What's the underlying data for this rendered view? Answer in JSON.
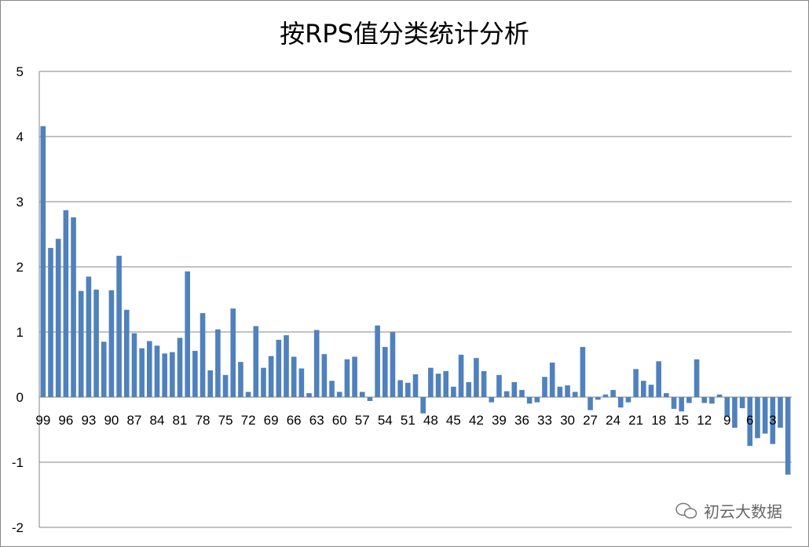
{
  "chart_data": {
    "type": "bar",
    "title": "按RPS值分类统计分析",
    "xlabel": "",
    "ylabel": "",
    "ylim": [
      -2,
      5
    ],
    "yticks": [
      -2,
      -1,
      0,
      1,
      2,
      3,
      4,
      5
    ],
    "grid": true,
    "legend": "none",
    "bar_color": "#4F81BD",
    "categories": [
      99,
      98,
      97,
      96,
      95,
      94,
      93,
      92,
      91,
      90,
      89,
      88,
      87,
      86,
      85,
      84,
      83,
      82,
      81,
      80,
      79,
      78,
      77,
      76,
      75,
      74,
      73,
      72,
      71,
      70,
      69,
      68,
      67,
      66,
      65,
      64,
      63,
      62,
      61,
      60,
      59,
      58,
      57,
      56,
      55,
      54,
      53,
      52,
      51,
      50,
      49,
      48,
      47,
      46,
      45,
      44,
      43,
      42,
      41,
      40,
      39,
      38,
      37,
      36,
      35,
      34,
      33,
      32,
      31,
      30,
      29,
      28,
      27,
      26,
      25,
      24,
      23,
      22,
      21,
      20,
      19,
      18,
      17,
      16,
      15,
      14,
      13,
      12,
      11,
      10,
      9,
      8,
      7,
      6,
      5,
      4,
      3,
      2,
      1
    ],
    "values": [
      4.16,
      2.29,
      2.43,
      2.87,
      2.76,
      1.63,
      1.85,
      1.65,
      0.85,
      1.64,
      2.17,
      1.34,
      0.98,
      0.75,
      0.86,
      0.79,
      0.67,
      0.69,
      0.91,
      1.93,
      0.71,
      1.29,
      0.41,
      1.04,
      0.34,
      1.36,
      0.54,
      0.08,
      1.09,
      0.45,
      0.63,
      0.88,
      0.95,
      0.62,
      0.44,
      0.06,
      1.03,
      0.66,
      0.25,
      0.08,
      0.58,
      0.62,
      0.08,
      -0.06,
      1.1,
      0.77,
      1.0,
      0.26,
      0.22,
      0.35,
      -0.25,
      0.45,
      0.36,
      0.4,
      0.16,
      0.65,
      0.23,
      0.6,
      0.4,
      -0.08,
      0.34,
      0.09,
      0.23,
      0.11,
      -0.1,
      -0.08,
      0.31,
      0.53,
      0.16,
      0.18,
      0.08,
      0.77,
      -0.2,
      -0.04,
      0.04,
      0.11,
      -0.16,
      -0.08,
      0.43,
      0.25,
      0.19,
      0.55,
      0.06,
      -0.18,
      -0.22,
      -0.09,
      0.58,
      -0.09,
      -0.1,
      0.04,
      -0.3,
      -0.47,
      -0.17,
      -0.75,
      -0.63,
      -0.56,
      -0.72,
      -0.47,
      -1.19
    ],
    "xtick_labels": [
      "99",
      "96",
      "93",
      "90",
      "87",
      "84",
      "81",
      "78",
      "75",
      "72",
      "69",
      "66",
      "63",
      "60",
      "57",
      "54",
      "51",
      "48",
      "45",
      "42",
      "39",
      "36",
      "33",
      "30",
      "27",
      "24",
      "21",
      "18",
      "15",
      "12",
      "9",
      "6",
      "3"
    ]
  },
  "watermark": {
    "text": "初云大数据",
    "icon": "wechat-icon"
  }
}
